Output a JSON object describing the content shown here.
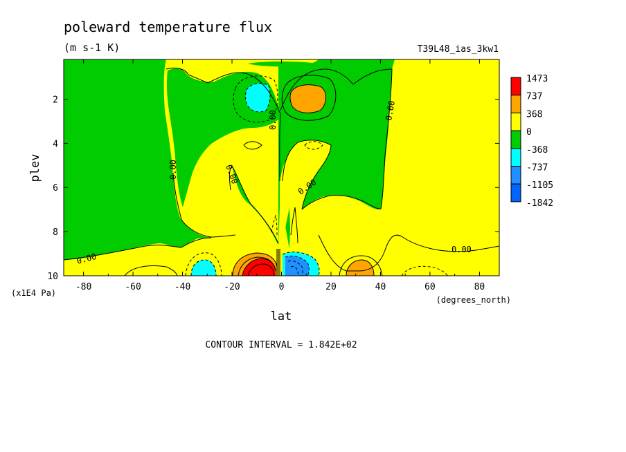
{
  "chart_data": {
    "type": "heatmap",
    "title": "poleward temperature flux",
    "units": "(m s-1 K)",
    "run_label": "T39L48_ias_3kw1",
    "xlabel": "lat",
    "x_units": "(degrees_north)",
    "ylabel": "plev",
    "y_units": "(x1E4 Pa)",
    "xlim": [
      -88,
      88
    ],
    "ylim": [
      10,
      0.2
    ],
    "x_ticks": [
      -80,
      -60,
      -40,
      -20,
      0,
      20,
      40,
      60,
      80
    ],
    "y_ticks": [
      2,
      4,
      6,
      8,
      10
    ],
    "contour_interval_text": "CONTOUR INTERVAL = 1.842E+02",
    "contour_labels": [
      "0.00",
      "0.00",
      "0.00",
      "0.00",
      "0.00",
      "0.00",
      "0.00",
      "0.00",
      "0.00"
    ],
    "colorbar": {
      "labels": [
        "1473",
        "737",
        "368",
        "0",
        "-368",
        "-737",
        "-1105",
        "-1842"
      ],
      "colors": [
        "#ff0000",
        "#ffa500",
        "#ffff00",
        "#00cc00",
        "#00ffff",
        "#1e90ff",
        "#0064ff"
      ]
    },
    "background_color": "#ffff00",
    "regions": [
      {
        "kind": "negative",
        "level": "-368",
        "desc": "left upper stratosphere lobe"
      },
      {
        "kind": "negative",
        "level": "-368",
        "desc": "right upper stratosphere lobe"
      },
      {
        "kind": "negative",
        "level": "-368",
        "desc": "lower troposphere band"
      },
      {
        "kind": "negative",
        "level": "-737",
        "desc": "upper minimum near -10 lat"
      },
      {
        "kind": "negative",
        "level": "-1105",
        "desc": "lower minimum near 5 lat"
      },
      {
        "kind": "positive",
        "level": "737",
        "desc": "upper maximum near 10 lat"
      },
      {
        "kind": "positive",
        "level": "1473",
        "desc": "lower maximum near -7 lat"
      },
      {
        "kind": "positive",
        "level": "737",
        "desc": "near 30 lat lower troposphere"
      }
    ]
  }
}
